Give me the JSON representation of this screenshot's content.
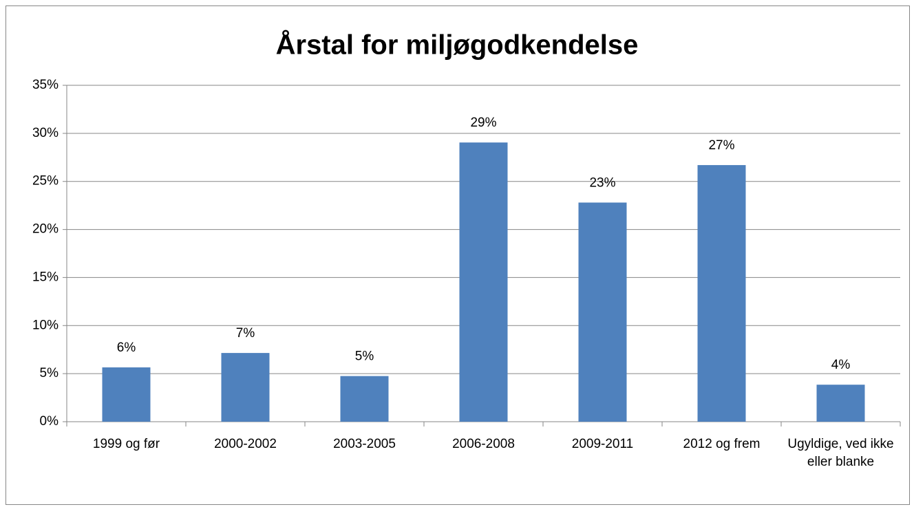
{
  "chart_data": {
    "type": "bar",
    "title": "Årstal for miljøgodkendelse",
    "categories": [
      "1999 og før",
      "2000-2002",
      "2003-2005",
      "2006-2008",
      "2009-2011",
      "2012 og frem",
      "Ugyldige, ved ikke eller blanke"
    ],
    "values": [
      5.65,
      7.15,
      4.75,
      29.05,
      22.8,
      26.7,
      3.85
    ],
    "value_labels": [
      "6%",
      "7%",
      "5%",
      "29%",
      "23%",
      "27%",
      "4%"
    ],
    "color": "#4f81bd",
    "ylim": [
      0,
      35
    ],
    "yticks": [
      {
        "value": 0,
        "label": "0%"
      },
      {
        "value": 5,
        "label": "5%"
      },
      {
        "value": 10,
        "label": "10%"
      },
      {
        "value": 15,
        "label": "15%"
      },
      {
        "value": 20,
        "label": "20%"
      },
      {
        "value": 25,
        "label": "25%"
      },
      {
        "value": 30,
        "label": "30%"
      },
      {
        "value": 35,
        "label": "35%"
      }
    ],
    "grid": true
  }
}
